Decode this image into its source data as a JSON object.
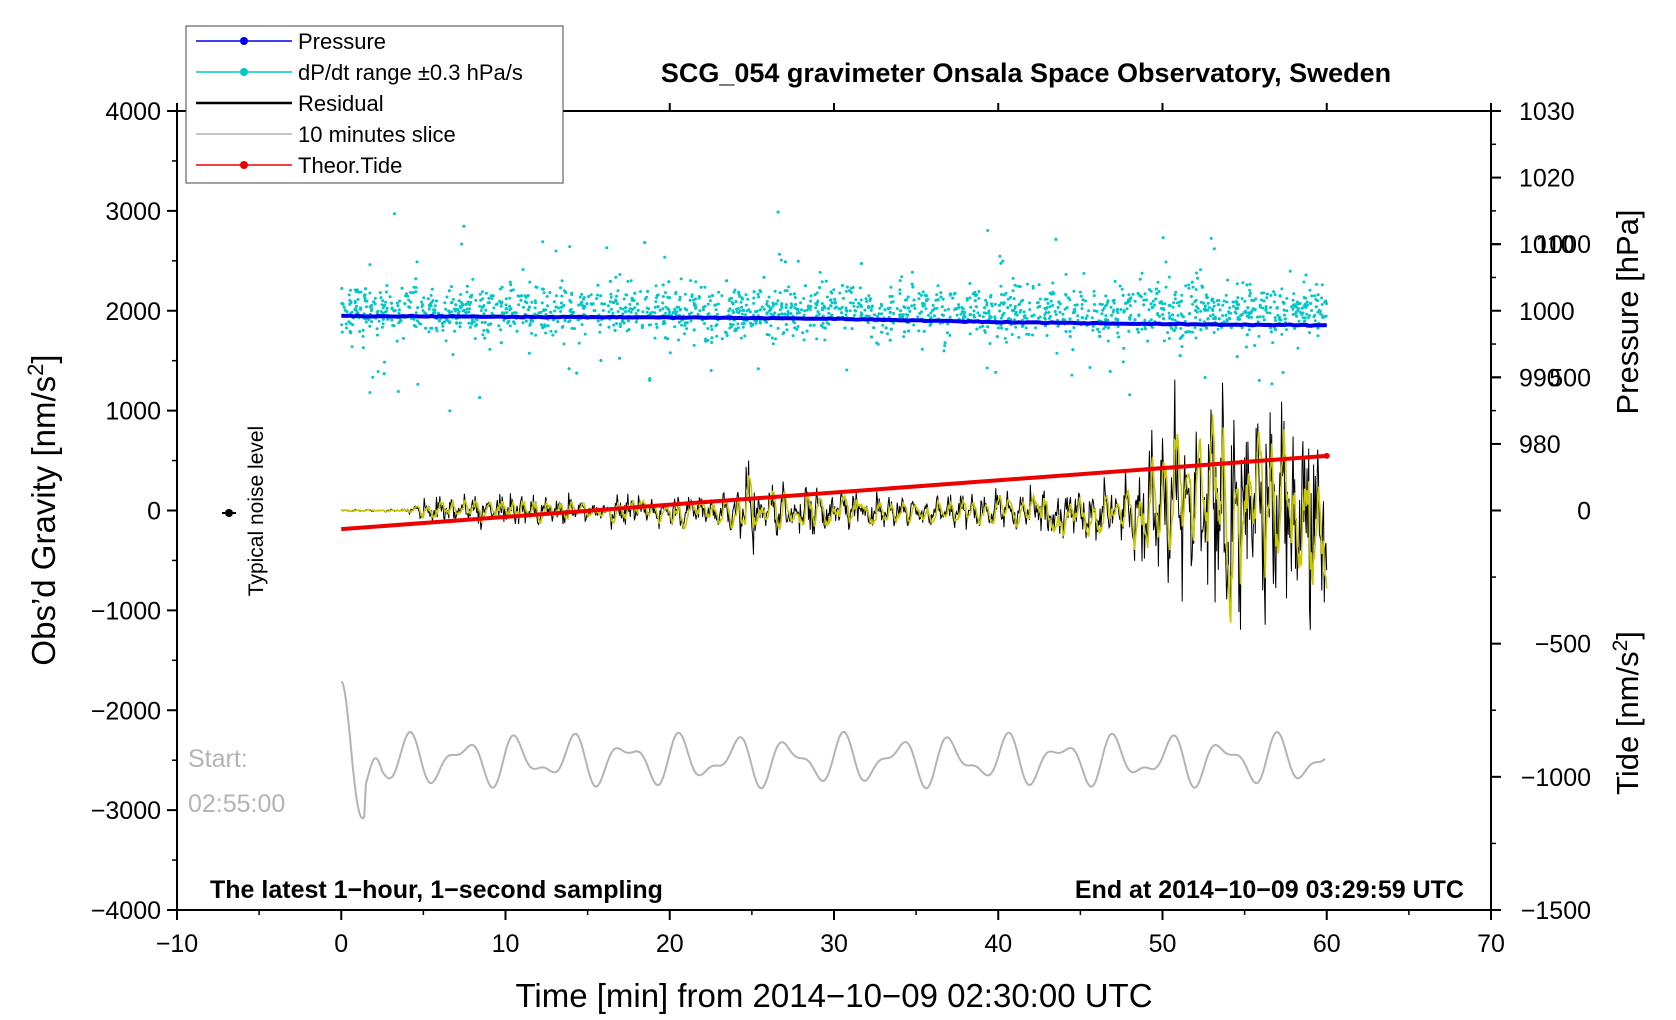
{
  "chart_data": {
    "type": "line",
    "title": "SCG_054 gravimeter Onsala Space Observatory, Sweden",
    "xlabel": "Time [min] from 2014−10−09 02:30:00 UTC",
    "xlim": [
      -10,
      70
    ],
    "xticks": [
      -10,
      0,
      10,
      20,
      30,
      40,
      50,
      60,
      70
    ],
    "xtick_labels": [
      "−10",
      "0",
      "10",
      "20",
      "30",
      "40",
      "50",
      "60",
      "70"
    ],
    "left_axis": {
      "label_main": "Obs’d Gravity [nm/s",
      "label_sup": "2",
      "label_end": "]",
      "ylim": [
        -4000,
        4000
      ],
      "ticks": [
        -4000,
        -3000,
        -2000,
        -1000,
        0,
        1000,
        2000,
        3000,
        4000
      ],
      "tick_labels": [
        "−4000",
        "−3000",
        "−2000",
        "−1000",
        "0",
        "1000",
        "2000",
        "3000",
        "4000"
      ]
    },
    "pressure_axis": {
      "label": "Pressure [hPa]",
      "ylim": [
        910,
        1030
      ],
      "ticks": [
        980,
        990,
        1000,
        1010,
        1020,
        1030
      ],
      "tick_labels": [
        "980",
        "990",
        "1000",
        "1010",
        "1020",
        "1030"
      ]
    },
    "tide_axis": {
      "label_main": "Tide [nm/s",
      "label_sup": "2",
      "label_end": "]",
      "ylim": [
        -1500,
        1500
      ],
      "ticks": [
        -1500,
        -1000,
        -500,
        0,
        500,
        1000
      ],
      "tick_labels": [
        "−1500",
        "−1000",
        "−500",
        "0",
        "500",
        "1000"
      ]
    },
    "legend": {
      "position": "top-left",
      "entries": [
        {
          "label": "Pressure",
          "color": "#0000ee",
          "marker": true
        },
        {
          "label": "dP/dt range ±0.3 hPa/s",
          "color": "#00c8c8",
          "marker": true
        },
        {
          "label": "Residual",
          "color": "#000000",
          "marker": false
        },
        {
          "label": "10 minutes slice",
          "color": "#b4b4b4",
          "marker": false
        },
        {
          "label": "Theor.Tide",
          "color": "#ee0000",
          "marker": true
        }
      ]
    },
    "series": [
      {
        "name": "Pressure",
        "axis": "pressure",
        "color": "#0000ee",
        "x": [
          0,
          10,
          20,
          30,
          40,
          50,
          60
        ],
        "values": [
          999.2,
          999.1,
          999.0,
          998.8,
          998.3,
          998.0,
          997.8
        ]
      },
      {
        "name": "Theor.Tide",
        "axis": "tide",
        "color": "#ee0000",
        "x": [
          0,
          60
        ],
        "values": [
          -70,
          205
        ]
      },
      {
        "name": "Residual envelope",
        "axis": "left",
        "color": "#000000",
        "x": [
          0,
          4,
          5,
          10,
          15,
          20,
          24,
          25,
          26,
          30,
          35,
          40,
          45,
          48,
          50,
          52,
          54,
          56,
          58,
          60
        ],
        "amplitude": [
          10,
          20,
          150,
          200,
          150,
          180,
          250,
          600,
          350,
          250,
          200,
          220,
          320,
          400,
          1100,
          1200,
          1500,
          1400,
          1200,
          1100
        ]
      },
      {
        "name": "10 minutes slice",
        "axis": "left",
        "color": "#b4b4b4",
        "x_range": [
          0,
          60
        ],
        "baseline": -2500,
        "amplitude": 300
      }
    ],
    "dpdt_cloud": {
      "axis": "left",
      "color": "#00c8c8",
      "x_range": [
        0,
        60
      ],
      "center": 2000,
      "spread": 500
    },
    "annotations": {
      "noise_label": "Typical noise level",
      "start_label": "Start:",
      "start_time": "02:55:00",
      "bottom_left": "The latest 1−hour, 1−second sampling",
      "bottom_right": "End at 2014−10−09 03:29:59 UTC"
    }
  }
}
